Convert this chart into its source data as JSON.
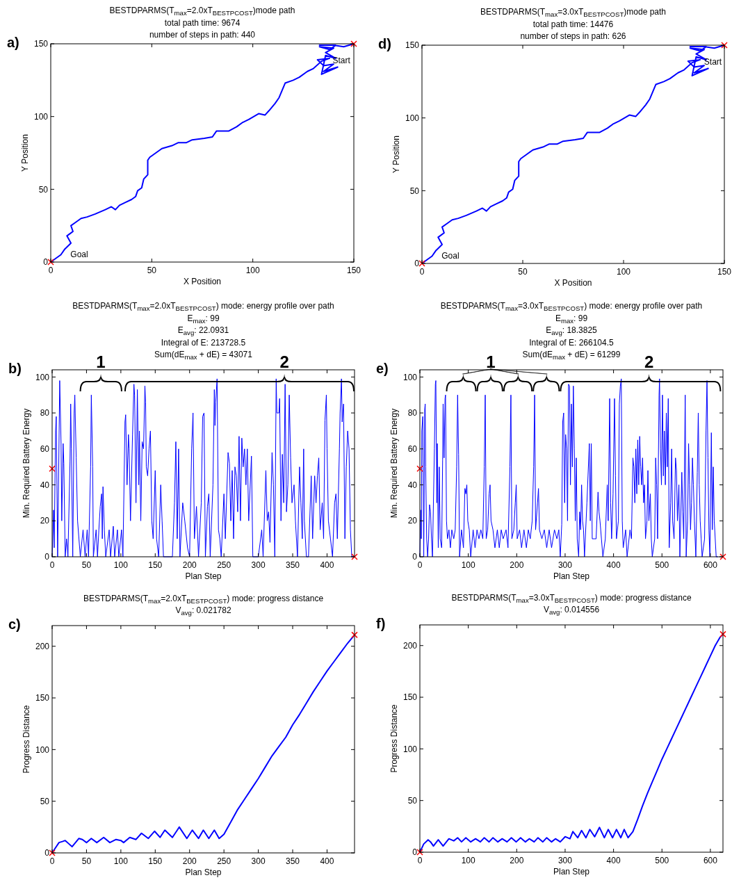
{
  "chart_data": [
    {
      "type": "line",
      "title": "BESTDPARMS(T$_{max}$=2.0xT$_{BESTPCOST}$)mode path",
      "subtitle": "total path time: 9674\nnumber of steps in path: 440",
      "xlabel": "X Position",
      "ylabel": "Y Position",
      "xlim": [
        0,
        150
      ],
      "ylim": [
        0,
        150
      ],
      "xticks": [
        0,
        50,
        100,
        150
      ],
      "yticks": [
        0,
        50,
        100,
        150
      ],
      "annotations": [
        "a)",
        "Start",
        "Goal"
      ],
      "series": [
        {
          "color": "#0000ff",
          "x": [
            0,
            2,
            5,
            7,
            10,
            8,
            10,
            11,
            10,
            12,
            15,
            18,
            22,
            27,
            30,
            32,
            34,
            37,
            40,
            42,
            43,
            45,
            46,
            48,
            48,
            49,
            52,
            55,
            60,
            63,
            67,
            70,
            76,
            80,
            82,
            88,
            92,
            95,
            98,
            103,
            106,
            108,
            111,
            113,
            116,
            120,
            123,
            127,
            130,
            134,
            138,
            132,
            135,
            140,
            135,
            142,
            134,
            136,
            141,
            136,
            140,
            133,
            138,
            141,
            133,
            140,
            145,
            150
          ],
          "values": [
            0,
            2,
            5,
            9,
            13,
            18,
            20,
            21,
            25,
            27,
            30,
            31,
            33,
            36,
            38,
            36,
            39,
            41,
            43,
            45,
            49,
            51,
            57,
            60,
            70,
            72,
            75,
            78,
            80,
            82,
            82,
            84,
            85,
            86,
            90,
            90,
            93,
            96,
            98,
            102,
            101,
            104,
            109,
            113,
            123,
            125,
            127,
            131,
            133,
            138,
            140,
            139,
            135,
            136,
            131,
            134,
            129,
            142,
            140,
            144,
            147,
            148,
            146,
            149,
            149,
            149,
            148,
            150
          ]
        },
        {
          "type": "scatter",
          "marker": "cross",
          "color": "#ff0000",
          "x": [
            0,
            150
          ],
          "values": [
            0,
            150
          ]
        }
      ]
    },
    {
      "type": "line",
      "title": "BESTDPARMS(T$_{max}$=3.0xT$_{BESTPCOST}$)mode path",
      "subtitle": "total path time: 14476\nnumber of steps in path: 626",
      "xlabel": "X Position",
      "ylabel": "Y Position",
      "xlim": [
        0,
        150
      ],
      "ylim": [
        0,
        150
      ],
      "xticks": [
        0,
        50,
        100,
        150
      ],
      "yticks": [
        0,
        50,
        100,
        150
      ],
      "annotations": [
        "d)",
        "Start",
        "Goal"
      ],
      "series": [
        {
          "color": "#0000ff",
          "x": [
            0,
            2,
            5,
            7,
            10,
            8,
            10,
            11,
            10,
            12,
            15,
            18,
            22,
            27,
            30,
            32,
            34,
            37,
            40,
            42,
            43,
            45,
            46,
            48,
            48,
            49,
            52,
            55,
            60,
            63,
            67,
            70,
            76,
            80,
            82,
            88,
            92,
            95,
            98,
            103,
            106,
            108,
            111,
            113,
            116,
            120,
            123,
            127,
            130,
            134,
            138,
            132,
            135,
            140,
            135,
            142,
            134,
            136,
            141,
            136,
            140,
            133,
            138,
            141,
            133,
            140,
            145,
            150
          ],
          "values": [
            0,
            2,
            5,
            9,
            13,
            18,
            20,
            21,
            25,
            27,
            30,
            31,
            33,
            36,
            38,
            36,
            39,
            41,
            43,
            45,
            49,
            51,
            57,
            60,
            70,
            72,
            75,
            78,
            80,
            82,
            82,
            84,
            85,
            86,
            90,
            90,
            93,
            96,
            98,
            102,
            101,
            104,
            109,
            113,
            123,
            125,
            127,
            131,
            133,
            138,
            140,
            139,
            135,
            136,
            131,
            134,
            129,
            142,
            140,
            144,
            147,
            148,
            146,
            149,
            149,
            149,
            148,
            150
          ]
        },
        {
          "type": "scatter",
          "marker": "cross",
          "color": "#ff0000",
          "x": [
            0,
            150
          ],
          "values": [
            0,
            150
          ]
        }
      ]
    },
    {
      "type": "line",
      "title": "BESTDPARMS(T$_{max}$=2.0xT$_{BESTPCOST}$) mode: energy profile over path",
      "subtitle": "E$_{max}$: 99\nE$_{avg}$: 22.0931\nIntegral of E: 213728.5\nSum(dE$_{max}$ + dE) = 43071",
      "xlabel": "Plan Step",
      "ylabel": "Min. Required Battery Energy",
      "xlim": [
        0,
        440
      ],
      "ylim": [
        0,
        104
      ],
      "xticks": [
        0,
        50,
        100,
        150,
        200,
        250,
        300,
        350,
        400
      ],
      "yticks": [
        0,
        20,
        40,
        60,
        80,
        100
      ],
      "annotations": [
        "b)",
        "1",
        "2"
      ],
      "series": [
        {
          "color": "#0000ff",
          "x": [
            0,
            2,
            3,
            5,
            6,
            8,
            10,
            11,
            13,
            14,
            16,
            17,
            19,
            21,
            23,
            26,
            27,
            28,
            30,
            32,
            33,
            35,
            37,
            39,
            41,
            45,
            48,
            51,
            53,
            56,
            57,
            59,
            60,
            64,
            66,
            68,
            70,
            72,
            73,
            74,
            76,
            78,
            83,
            85,
            89,
            91,
            95,
            97,
            101,
            103,
            106,
            107,
            109,
            111,
            112,
            114,
            117,
            119,
            120,
            122,
            124,
            126,
            127,
            129,
            131,
            133,
            135,
            136,
            137,
            139,
            141,
            143,
            145,
            147,
            150,
            152,
            155,
            158,
            160,
            162,
            166,
            170,
            175,
            178,
            180,
            182,
            184,
            186,
            190,
            193,
            197,
            200,
            203,
            205,
            207,
            210,
            213,
            217,
            219,
            221,
            223,
            226,
            228,
            230,
            234,
            236,
            237,
            238,
            240,
            242,
            244,
            246,
            250,
            252,
            256,
            258,
            260,
            262,
            264,
            266,
            268,
            270,
            272,
            274,
            276,
            278,
            280,
            282,
            284,
            286,
            290,
            292,
            300,
            305,
            307,
            311,
            313,
            315,
            317,
            320,
            322,
            324,
            326,
            327,
            330,
            331,
            333,
            335,
            337,
            339,
            341,
            343,
            345,
            347,
            349,
            352,
            354,
            357,
            360,
            362,
            364,
            366,
            367,
            370,
            373,
            377,
            379,
            382,
            384,
            386,
            388,
            390,
            393,
            395,
            397,
            399,
            400,
            402,
            405,
            408,
            411,
            413,
            415,
            418,
            419,
            421,
            422,
            424,
            426,
            428,
            430,
            432,
            434,
            436,
            440
          ],
          "values": [
            0,
            26,
            5,
            70,
            78,
            0,
            63,
            98,
            63,
            20,
            63,
            52,
            0,
            10,
            0,
            53,
            85,
            60,
            0,
            80,
            90,
            55,
            20,
            10,
            0,
            15,
            0,
            15,
            0,
            50,
            90,
            50,
            0,
            15,
            0,
            15,
            28,
            35,
            10,
            39,
            15,
            0,
            15,
            0,
            17,
            0,
            15,
            0,
            15,
            0,
            75,
            79,
            40,
            68,
            60,
            20,
            68,
            96,
            90,
            30,
            93,
            40,
            70,
            20,
            64,
            60,
            95,
            86,
            50,
            45,
            60,
            70,
            20,
            10,
            48,
            10,
            0,
            40,
            20,
            0,
            0,
            0,
            0,
            30,
            64,
            10,
            60,
            0,
            30,
            20,
            5,
            0,
            60,
            80,
            10,
            28,
            0,
            30,
            78,
            80,
            0,
            28,
            35,
            0,
            40,
            93,
            73,
            86,
            99,
            15,
            10,
            0,
            35,
            10,
            58,
            52,
            20,
            48,
            10,
            50,
            45,
            25,
            67,
            20,
            66,
            50,
            60,
            40,
            60,
            20,
            56,
            0,
            0,
            15,
            0,
            48,
            20,
            25,
            8,
            58,
            40,
            0,
            99,
            80,
            80,
            88,
            20,
            57,
            30,
            96,
            25,
            40,
            90,
            55,
            30,
            40,
            20,
            0,
            50,
            30,
            10,
            60,
            20,
            0,
            0,
            45,
            10,
            45,
            30,
            45,
            55,
            15,
            30,
            10,
            76,
            90,
            60,
            20,
            10,
            0,
            30,
            35,
            10,
            60,
            80,
            99,
            75,
            85,
            10,
            50,
            70,
            60,
            15,
            0,
            0
          ]
        },
        {
          "type": "scatter",
          "marker": "cross",
          "color": "#ff0000",
          "x": [
            0,
            440
          ],
          "values": [
            49,
            0
          ]
        }
      ]
    },
    {
      "type": "line",
      "title": "BESTDPARMS(T$_{max}$=3.0xT$_{BESTPCOST}$) mode: energy profile over path",
      "subtitle": "E$_{max}$: 99\nE$_{avg}$: 18.3825\nIntegral of E: 266104.5\nSum(dE$_{max}$ + dE) = 61299",
      "xlabel": "Plan Step",
      "ylabel": "Min. Required Battery Energy",
      "xlim": [
        0,
        626
      ],
      "ylim": [
        0,
        104
      ],
      "xticks": [
        0,
        100,
        200,
        300,
        400,
        500,
        600
      ],
      "yticks": [
        0,
        20,
        40,
        60,
        80,
        100
      ],
      "annotations": [
        "e)",
        "1",
        "2"
      ],
      "series": [
        {
          "color": "#0000ff",
          "x": [
            0,
            2,
            3,
            4,
            6,
            8,
            10,
            11,
            12,
            14,
            16,
            18,
            20,
            22,
            24,
            26,
            30,
            32,
            33,
            35,
            36,
            38,
            40,
            42,
            45,
            47,
            48,
            50,
            52,
            53,
            55,
            57,
            60,
            63,
            66,
            70,
            73,
            76,
            78,
            80,
            82,
            86,
            90,
            93,
            95,
            97,
            99,
            102,
            105,
            110,
            114,
            118,
            122,
            126,
            130,
            133,
            135,
            137,
            140,
            143,
            145,
            147,
            151,
            155,
            160,
            164,
            168,
            172,
            178,
            182,
            186,
            188,
            190,
            194,
            197,
            199,
            201,
            206,
            210,
            215,
            220,
            224,
            228,
            232,
            235,
            237,
            239,
            243,
            245,
            247,
            252,
            257,
            262,
            267,
            272,
            278,
            283,
            287,
            290,
            293,
            295,
            297,
            299,
            301,
            303,
            305,
            307,
            309,
            311,
            313,
            315,
            317,
            319,
            321,
            323,
            325,
            328,
            330,
            332,
            334,
            336,
            338,
            340,
            345,
            350,
            352,
            354,
            356,
            360,
            364,
            368,
            370,
            372,
            375,
            378,
            383,
            387,
            389,
            392,
            394,
            396,
            399,
            402,
            404,
            406,
            410,
            412,
            414,
            416,
            418,
            420,
            425,
            428,
            434,
            437,
            440,
            442,
            444,
            446,
            448,
            450,
            452,
            454,
            456,
            458,
            460,
            462,
            464,
            466,
            469,
            471,
            473,
            476,
            478,
            480,
            485,
            487,
            489,
            491,
            494,
            495,
            497,
            499,
            501,
            503,
            505,
            507,
            509,
            511,
            513,
            515,
            518,
            520,
            522,
            525,
            528,
            530,
            532,
            535,
            537,
            541,
            543,
            545,
            548,
            550,
            553,
            555,
            557,
            559,
            561,
            563,
            565,
            567,
            570,
            573,
            575,
            577,
            579,
            581,
            583,
            588,
            591,
            593,
            595,
            597,
            599,
            602,
            604,
            606,
            608,
            612,
            615
          ],
          "values": [
            0,
            26,
            10,
            70,
            78,
            0,
            82,
            85,
            50,
            10,
            0,
            10,
            29,
            25,
            10,
            0,
            60,
            96,
            98,
            30,
            63,
            5,
            50,
            10,
            5,
            54,
            85,
            55,
            88,
            90,
            20,
            10,
            15,
            5,
            15,
            10,
            15,
            50,
            90,
            57,
            0,
            15,
            5,
            38,
            35,
            40,
            20,
            15,
            0,
            15,
            5,
            15,
            10,
            15,
            10,
            50,
            90,
            10,
            15,
            35,
            40,
            20,
            15,
            5,
            15,
            5,
            15,
            10,
            15,
            5,
            50,
            90,
            10,
            15,
            30,
            40,
            10,
            15,
            5,
            15,
            5,
            15,
            10,
            20,
            50,
            90,
            15,
            30,
            38,
            15,
            10,
            15,
            5,
            15,
            5,
            15,
            10,
            15,
            0,
            18,
            75,
            80,
            30,
            68,
            60,
            20,
            96,
            95,
            40,
            85,
            50,
            95,
            60,
            20,
            55,
            10,
            0,
            25,
            15,
            40,
            20,
            15,
            0,
            30,
            63,
            20,
            63,
            10,
            10,
            10,
            36,
            25,
            20,
            10,
            0,
            10,
            40,
            20,
            88,
            30,
            10,
            35,
            88,
            45,
            10,
            20,
            85,
            95,
            99,
            20,
            5,
            15,
            0,
            15,
            10,
            55,
            50,
            30,
            60,
            35,
            65,
            40,
            67,
            50,
            40,
            55,
            30,
            40,
            10,
            20,
            48,
            20,
            35,
            10,
            0,
            10,
            55,
            40,
            10,
            90,
            99,
            60,
            40,
            90,
            45,
            70,
            40,
            80,
            50,
            88,
            5,
            30,
            60,
            20,
            10,
            55,
            48,
            20,
            40,
            0,
            47,
            25,
            10,
            90,
            0,
            20,
            63,
            40,
            15,
            30,
            55,
            40,
            20,
            0,
            47,
            80,
            40,
            20,
            10,
            0,
            10,
            70,
            98,
            55,
            15,
            0,
            69,
            15,
            50,
            20,
            0,
            0
          ]
        },
        {
          "type": "scatter",
          "marker": "cross",
          "color": "#ff0000",
          "x": [
            0,
            626
          ],
          "values": [
            49,
            0
          ]
        }
      ]
    },
    {
      "type": "line",
      "title": "BESTDPARMS(T$_{max}$=2.0xT$_{BESTPCOST}$) mode: progress distance",
      "subtitle": "V$_{avg}$: 0.021782",
      "xlabel": "Plan Step",
      "ylabel": "Progress Distance",
      "xlim": [
        0,
        440
      ],
      "ylim": [
        0,
        220
      ],
      "xticks": [
        0,
        50,
        100,
        150,
        200,
        250,
        300,
        350,
        400
      ],
      "yticks": [
        0,
        50,
        100,
        150,
        200
      ],
      "annotations": [
        "c)"
      ],
      "series": [
        {
          "color": "#0000ff",
          "x": [
            0,
            5,
            10,
            15,
            19,
            24,
            29,
            34,
            39,
            44,
            50,
            57,
            65,
            75,
            84,
            93,
            100,
            104,
            113,
            122,
            130,
            140,
            149,
            157,
            164,
            175,
            185,
            196,
            204,
            213,
            220,
            228,
            236,
            243,
            250,
            260,
            270,
            280,
            290,
            300,
            310,
            320,
            330,
            340,
            350,
            360,
            370,
            380,
            390,
            400,
            410,
            420,
            430,
            440
          ],
          "values": [
            0,
            5,
            10,
            11,
            12,
            9,
            6,
            10,
            14,
            13,
            10,
            14,
            10,
            15,
            10,
            13,
            12,
            10,
            15,
            13,
            19,
            14,
            21,
            15,
            22,
            15,
            25,
            14,
            22,
            14,
            22,
            14,
            22,
            14,
            18,
            30,
            42,
            52,
            62,
            72,
            83,
            94,
            103,
            112,
            124,
            134,
            145,
            156,
            166,
            176,
            185,
            194,
            203,
            211
          ]
        },
        {
          "type": "scatter",
          "marker": "cross",
          "color": "#ff0000",
          "x": [
            0,
            440
          ],
          "values": [
            0,
            211
          ]
        }
      ]
    },
    {
      "type": "line",
      "title": "BESTDPARMS(T$_{max}$=3.0xT$_{BESTPCOST}$) mode: progress distance",
      "subtitle": "V$_{avg}$: 0.014556",
      "xlabel": "Plan Step",
      "ylabel": "Progress Distance",
      "xlim": [
        0,
        626
      ],
      "ylim": [
        0,
        220
      ],
      "xticks": [
        0,
        100,
        200,
        300,
        400,
        500,
        600
      ],
      "yticks": [
        0,
        50,
        100,
        150,
        200
      ],
      "annotations": [
        "f)"
      ],
      "series": [
        {
          "color": "#0000ff",
          "x": [
            0,
            8,
            17,
            22,
            28,
            38,
            48,
            60,
            70,
            78,
            86,
            95,
            105,
            115,
            125,
            133,
            143,
            151,
            161,
            170,
            180,
            189,
            199,
            208,
            218,
            226,
            236,
            244,
            254,
            262,
            272,
            280,
            290,
            300,
            310,
            316,
            326,
            334,
            343,
            351,
            361,
            371,
            381,
            389,
            398,
            406,
            415,
            422,
            430,
            440,
            450,
            460,
            470,
            480,
            490,
            500,
            510,
            520,
            530,
            540,
            550,
            560,
            570,
            580,
            590,
            600,
            610,
            620,
            626
          ],
          "values": [
            0,
            8,
            12,
            10,
            6,
            12,
            6,
            13,
            11,
            14,
            10,
            14,
            10,
            13,
            10,
            14,
            10,
            14,
            10,
            13,
            10,
            14,
            10,
            14,
            10,
            13,
            10,
            14,
            10,
            14,
            10,
            13,
            10,
            15,
            13,
            20,
            14,
            21,
            14,
            22,
            15,
            24,
            14,
            22,
            14,
            22,
            14,
            22,
            14,
            20,
            32,
            45,
            57,
            68,
            79,
            90,
            100,
            110,
            120,
            130,
            140,
            150,
            160,
            170,
            180,
            190,
            200,
            208,
            211
          ]
        },
        {
          "type": "scatter",
          "marker": "cross",
          "color": "#ff0000",
          "x": [
            0,
            626
          ],
          "values": [
            0,
            211
          ]
        }
      ]
    }
  ]
}
